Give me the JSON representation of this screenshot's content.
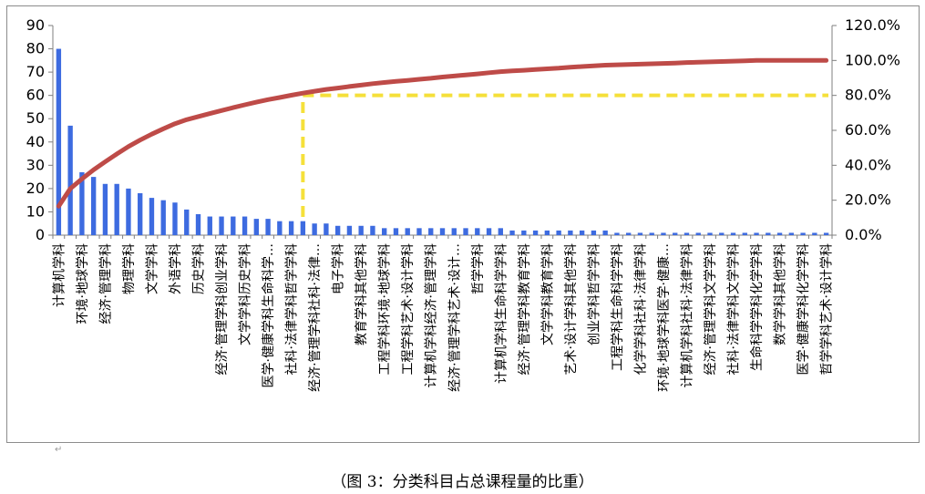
{
  "caption": "（图 3：分类科目占总课程量的比重）",
  "paragraph_mark": "↵",
  "colors": {
    "bar": "#3d6be0",
    "line": "#be4b48",
    "guide": "#f5e03a",
    "axis": "#7f7f7f"
  },
  "chart_data": {
    "type": "bar",
    "title": "",
    "xlabel": "",
    "ylabel": "",
    "ylim": [
      0,
      90
    ],
    "y_ticks": [
      0,
      10,
      20,
      30,
      40,
      50,
      60,
      70,
      80,
      90
    ],
    "y2lim": [
      0,
      120
    ],
    "y2_ticks": [
      "0.0%",
      "20.0%",
      "40.0%",
      "60.0%",
      "80.0%",
      "100.0%",
      "120.0%"
    ],
    "grid": false,
    "legend": "none",
    "categories": [
      "计算机学科",
      "",
      "环境·地球学科",
      "",
      "经济·管理学科",
      "",
      "物理学科",
      "",
      "文学学科",
      "",
      "外语学科",
      "",
      "历史学科",
      "",
      "经济·管理学科创业学科",
      "",
      "文学学科历史学科",
      "",
      "医学·健康学科生命科学…",
      "",
      "社科·法律学科哲学学科",
      "",
      "经济·管理学科社科·法律…",
      "",
      "电子学科",
      "",
      "教育学科其他学科",
      "",
      "工程学科环境·地球学科",
      "",
      "工程学科艺术·设计学科",
      "",
      "计算机学科经济·管理学科",
      "",
      "经济·管理学科艺术·设计…",
      "",
      "哲学学科",
      "",
      "计算机学科生命科学学科",
      "",
      "经济·管理学科教育学科",
      "",
      "文学学科教育学科",
      "",
      "艺术·设计学科其他学科",
      "",
      "创业学科哲学学科",
      "",
      "工程学科生命科学学科",
      "",
      "化学学科社科·法律学科",
      "",
      "环境·地球学科医学·健康…",
      "",
      "计算机学科社科·法律学科",
      "",
      "经济·管理学科文学学科",
      "",
      "社科·法律学科文学学科",
      "",
      "生命科学学科化学学科",
      "",
      "数学学科其他学科",
      "",
      "医学·健康学科化学学科",
      "",
      "哲学学科艺术·设计学科"
    ],
    "series": [
      {
        "type": "bar",
        "axis": "left",
        "values": [
          80,
          47,
          27,
          25,
          22,
          22,
          20,
          18,
          16,
          15,
          14,
          11,
          9,
          8,
          8,
          8,
          8,
          7,
          7,
          6,
          6,
          6,
          5,
          5,
          4,
          4,
          4,
          4,
          3,
          3,
          3,
          3,
          3,
          3,
          3,
          3,
          3,
          3,
          3,
          2,
          2,
          2,
          2,
          2,
          2,
          2,
          2,
          2,
          1,
          1,
          1,
          1,
          1,
          1,
          1,
          1,
          1,
          1,
          1,
          1,
          1,
          1,
          1,
          1,
          1,
          1,
          1
        ]
      },
      {
        "type": "line",
        "axis": "right",
        "values": [
          16.6,
          26.6,
          32.2,
          37.4,
          42.0,
          46.5,
          50.7,
          54.4,
          57.8,
          60.9,
          63.8,
          66.1,
          67.9,
          69.6,
          71.3,
          73.0,
          74.6,
          76.1,
          77.6,
          78.8,
          80.1,
          81.3,
          82.4,
          83.4,
          84.2,
          85.1,
          85.9,
          86.7,
          87.4,
          88.0,
          88.6,
          89.2,
          89.8,
          90.5,
          91.1,
          91.7,
          92.3,
          93.0,
          93.6,
          94.0,
          94.4,
          94.8,
          95.2,
          95.6,
          96.1,
          96.5,
          96.9,
          97.3,
          97.5,
          97.7,
          97.9,
          98.1,
          98.3,
          98.5,
          98.8,
          99.0,
          99.2,
          99.4,
          99.6,
          99.8,
          100.0,
          100.0,
          100.0,
          100.0,
          100.0,
          100.0,
          100.0
        ]
      }
    ],
    "reference_line": {
      "axis": "right",
      "value": 80,
      "from_category": 21
    }
  }
}
